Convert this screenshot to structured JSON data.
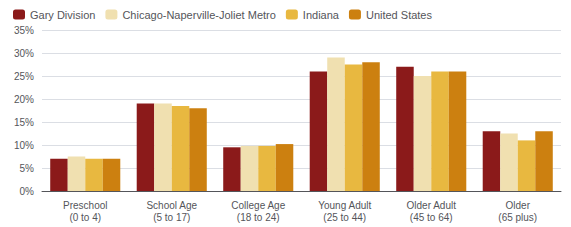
{
  "chart_data": {
    "type": "bar",
    "categories": [
      "Preschool\n(0 to 4)",
      "School Age\n(5 to 17)",
      "College Age\n(18 to 24)",
      "Young Adult\n(25 to 44)",
      "Older Adult\n(45 to 64)",
      "Older\n(65 plus)"
    ],
    "series": [
      {
        "name": "Gary Division",
        "color": "#8B1A1A",
        "values": [
          7.0,
          19.0,
          9.5,
          26.0,
          27.0,
          13.0
        ]
      },
      {
        "name": "Chicago-Naperville-Joliet Metro",
        "color": "#F0E0B0",
        "values": [
          7.5,
          19.0,
          9.8,
          29.0,
          25.0,
          12.5
        ]
      },
      {
        "name": "Indiana",
        "color": "#E8B840",
        "values": [
          7.0,
          18.5,
          9.8,
          27.5,
          26.0,
          11.0
        ]
      },
      {
        "name": "United States",
        "color": "#CC8010",
        "values": [
          7.0,
          18.0,
          10.2,
          28.0,
          26.0,
          13.0
        ]
      }
    ],
    "ylim": [
      0,
      35
    ],
    "yticks": [
      {
        "value": 0,
        "label": "0%"
      },
      {
        "value": 5,
        "label": "5%"
      },
      {
        "value": 10,
        "label": "10%"
      },
      {
        "value": 15,
        "label": "15%"
      },
      {
        "value": 20,
        "label": "20%"
      },
      {
        "value": 25,
        "label": "25%"
      },
      {
        "value": 30,
        "label": "30%"
      },
      {
        "value": 35,
        "label": "35%"
      }
    ],
    "grid": true,
    "legend": "upper left"
  }
}
